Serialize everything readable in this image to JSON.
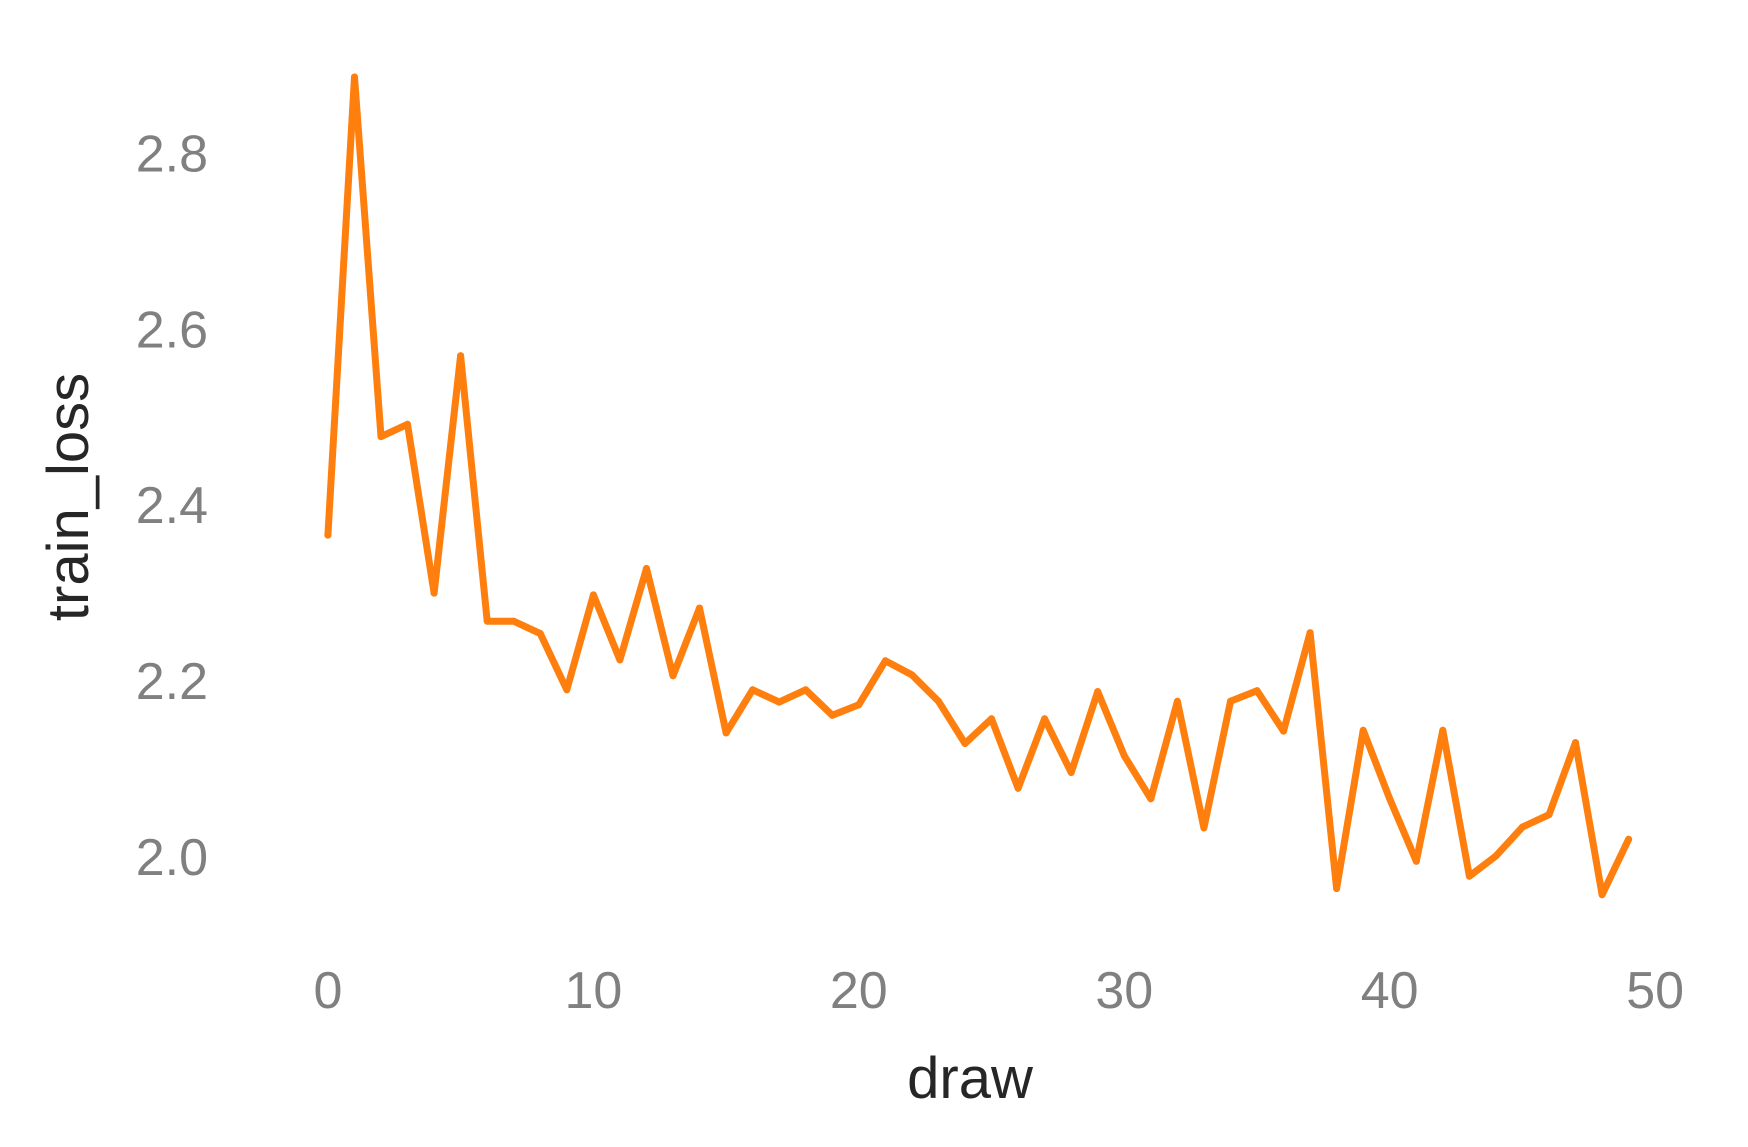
{
  "chart_data": {
    "type": "line",
    "title": "",
    "xlabel": "draw",
    "ylabel": "train_loss",
    "xlim": [
      -3.5,
      51.5
    ],
    "ylim": [
      1.91,
      2.92
    ],
    "x_ticks": [
      0,
      10,
      20,
      30,
      40,
      50
    ],
    "y_ticks": [
      2.0,
      2.2,
      2.4,
      2.6,
      2.8
    ],
    "x_tick_labels": [
      "0",
      "10",
      "20",
      "30",
      "40",
      "50"
    ],
    "y_tick_labels": [
      "2.0",
      "2.2",
      "2.4",
      "2.6",
      "2.8"
    ],
    "grid": false,
    "legend": "none",
    "colors": {
      "line": "#ff7f0e",
      "tick_label": "#808080",
      "axis_title": "#262626"
    },
    "series": [
      {
        "x": [
          0,
          1,
          2,
          3,
          4,
          5,
          6,
          7,
          8,
          9,
          10,
          11,
          12,
          13,
          14,
          15,
          16,
          17,
          18,
          19,
          20,
          21,
          22,
          23,
          24,
          25,
          26,
          27,
          28,
          29,
          30,
          31,
          32,
          33,
          34,
          35,
          36,
          37,
          38,
          39,
          40,
          41,
          42,
          43,
          44,
          45,
          46,
          47,
          48,
          49
        ],
        "values": [
          2.366,
          2.887,
          2.478,
          2.492,
          2.3,
          2.57,
          2.268,
          2.268,
          2.254,
          2.19,
          2.298,
          2.224,
          2.328,
          2.206,
          2.283,
          2.141,
          2.19,
          2.176,
          2.19,
          2.161,
          2.173,
          2.223,
          2.207,
          2.177,
          2.129,
          2.157,
          2.078,
          2.157,
          2.096,
          2.188,
          2.115,
          2.066,
          2.177,
          2.033,
          2.177,
          2.189,
          2.143,
          2.255,
          1.964,
          2.144,
          2.066,
          1.995,
          2.144,
          1.978,
          2.001,
          2.034,
          2.048,
          2.13,
          1.957,
          2.02
        ]
      }
    ]
  }
}
